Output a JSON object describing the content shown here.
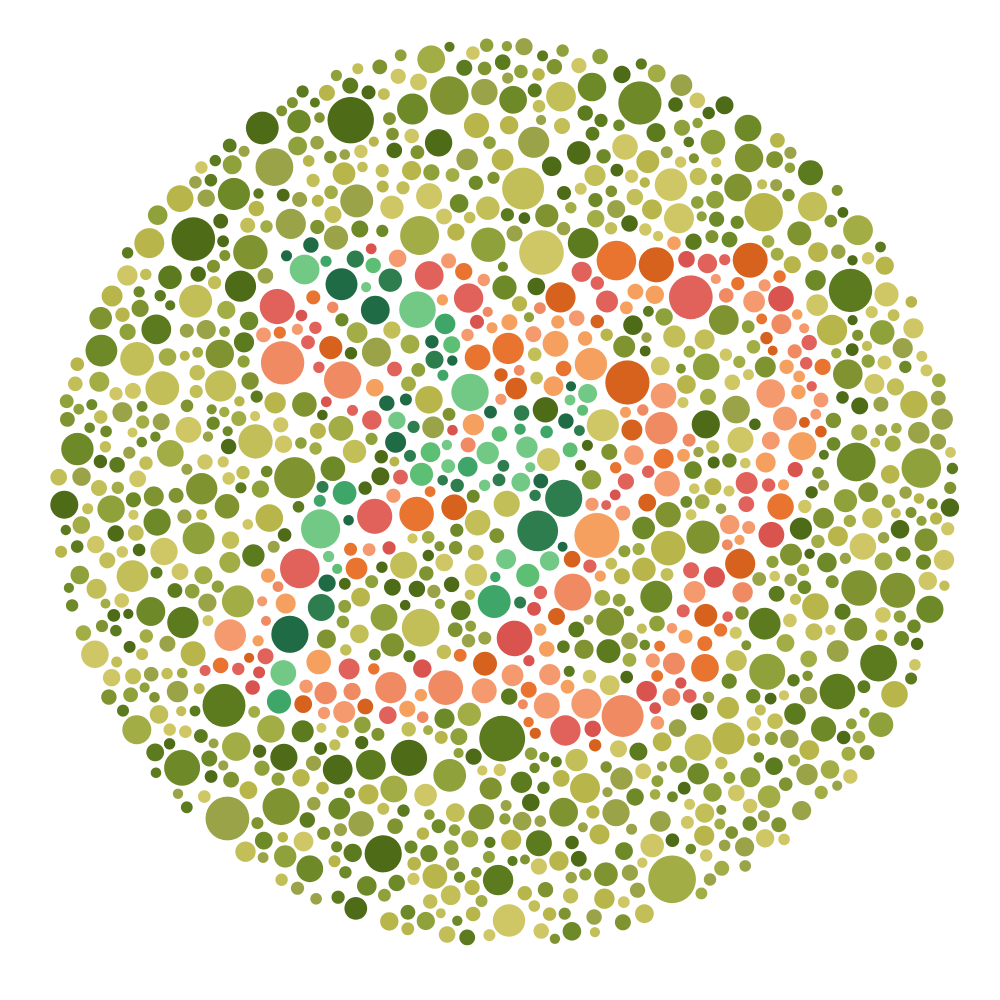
{
  "image": {
    "kind": "color-vision-test-plate",
    "background_color": "#ffffff",
    "figure_palette": [
      "#d9534f",
      "#e0625a",
      "#f08a63",
      "#f59a6e",
      "#e8742f",
      "#d6621e",
      "#f6a060"
    ],
    "hidden_palette": [
      "#2e7d4f",
      "#1f6b45",
      "#5cbf73",
      "#3fa66a",
      "#72c986"
    ],
    "background_palette": [
      "#5c7a1e",
      "#4e6b17",
      "#6e8a28",
      "#8fa13a",
      "#a2ad45",
      "#b8b64b",
      "#c2be58",
      "#cfc765",
      "#9aa348",
      "#7f9330"
    ]
  }
}
